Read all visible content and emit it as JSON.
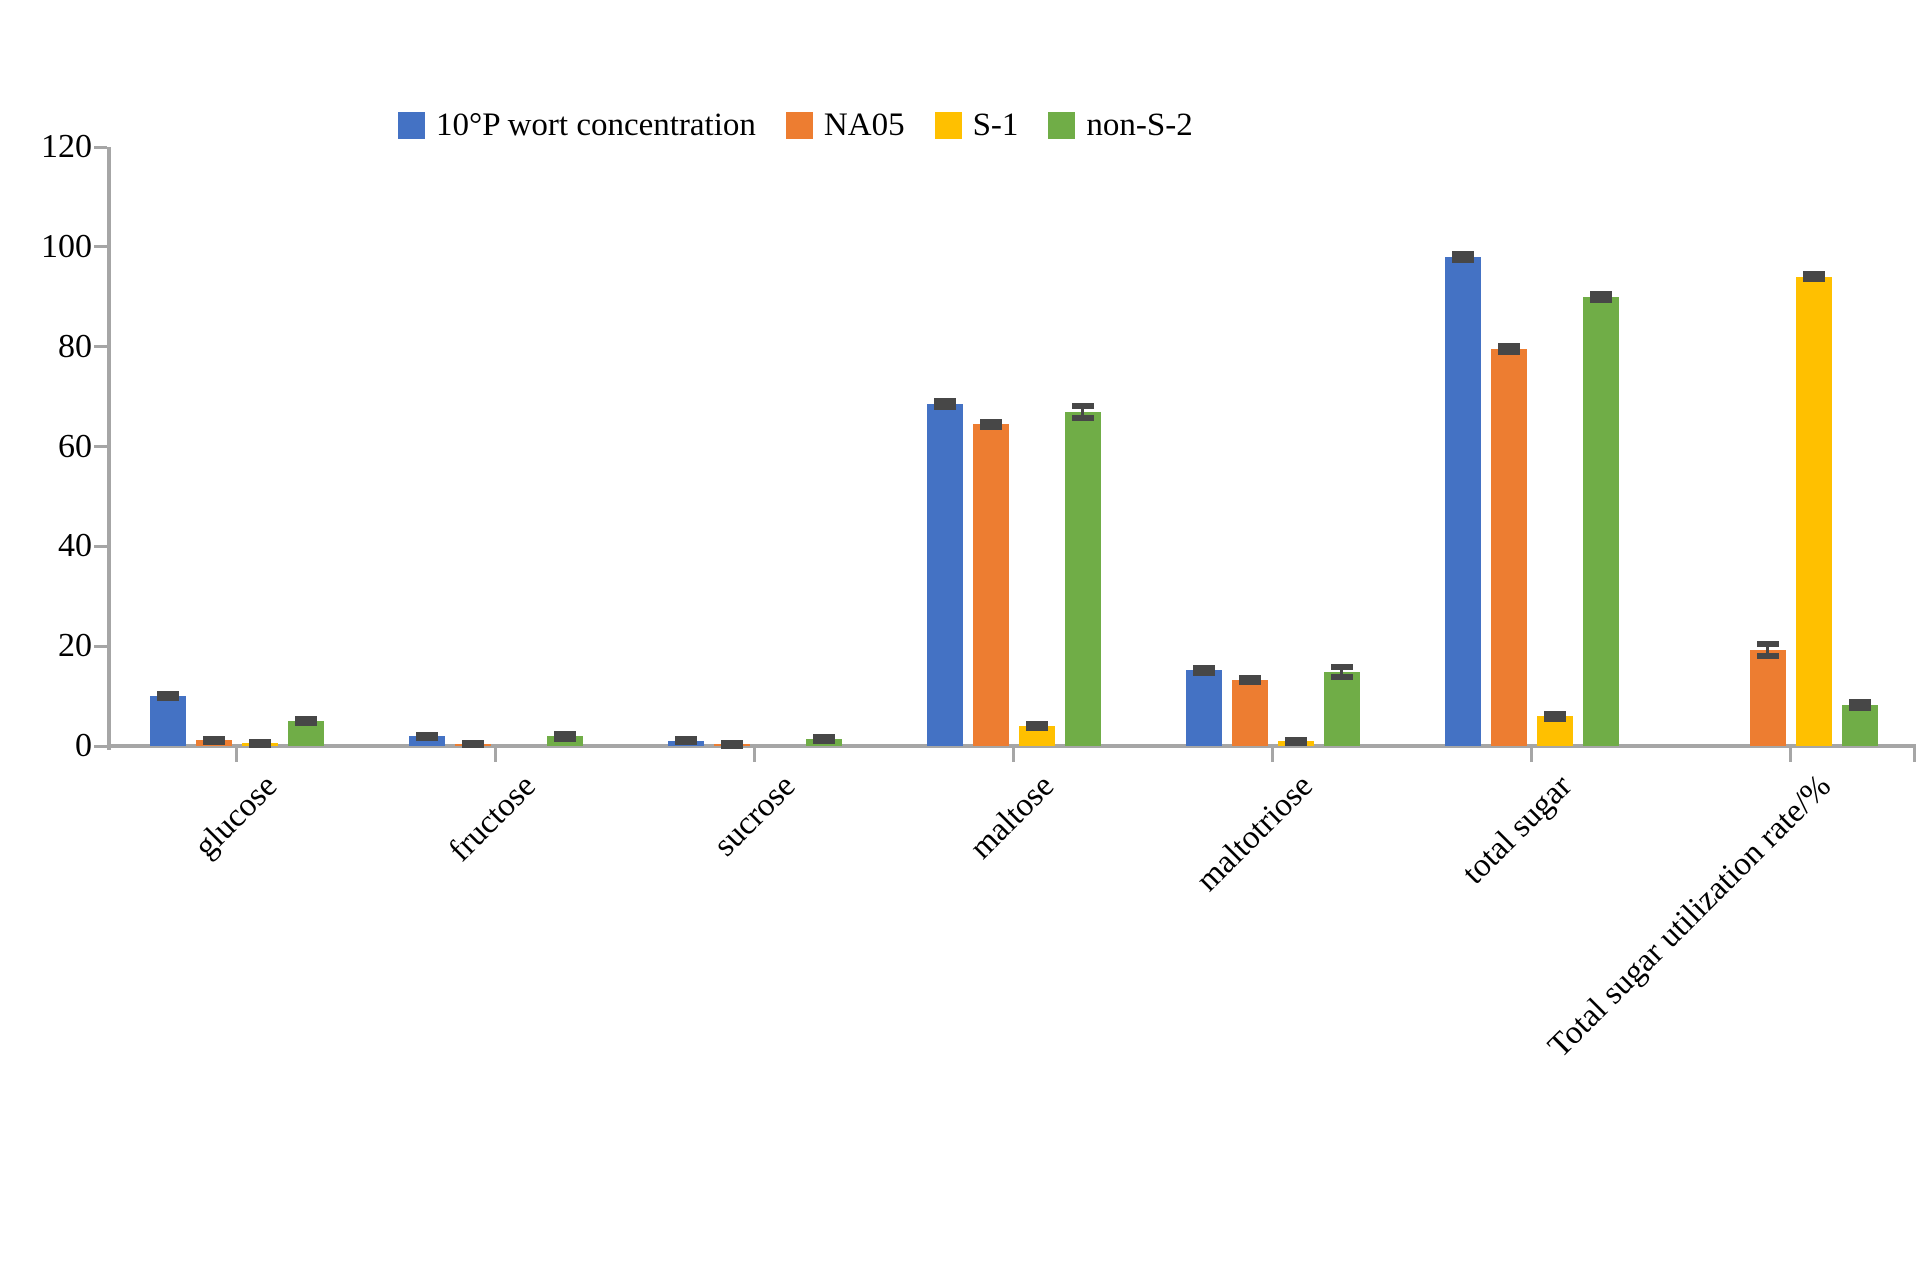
{
  "chart_data": {
    "type": "bar",
    "title": "",
    "xlabel": "",
    "ylabel": "",
    "ylim": [
      0,
      120
    ],
    "yticks": [
      0,
      20,
      40,
      60,
      80,
      100,
      120
    ],
    "grid": false,
    "legend_position": "top",
    "axis_color": "#A6A6A6",
    "error_bar_color": "#474747",
    "background": "#FFFFFF",
    "categories": [
      "glucose",
      "fructose",
      "sucrose",
      "maltose",
      "maltotriose",
      "total sugar",
      "Total sugar utilization rate/%"
    ],
    "series": [
      {
        "name": "10°P wort concentration",
        "color": "#4472C4",
        "values": [
          10,
          2,
          1.1,
          68.5,
          15.2,
          98,
          0
        ],
        "errors": [
          0.4,
          0.3,
          0.3,
          0.6,
          0.5,
          0.6,
          0
        ]
      },
      {
        "name": "NA05",
        "color": "#ED7D31",
        "values": [
          1.2,
          0.4,
          0.4,
          64.5,
          13.2,
          79.5,
          19.3
        ],
        "errors": [
          0.3,
          0.2,
          0.3,
          0.5,
          0.4,
          0.6,
          1.2
        ]
      },
      {
        "name": "S-1",
        "color": "#FFC000",
        "values": [
          0.6,
          0,
          0,
          4,
          1,
          6,
          94
        ],
        "errors": [
          0.3,
          0,
          0,
          0.4,
          0.3,
          0.5,
          0.5
        ]
      },
      {
        "name": "non-S-2",
        "color": "#70AD47",
        "values": [
          5,
          2,
          1.4,
          67,
          14.8,
          90,
          8.2
        ],
        "errors": [
          0.4,
          0.5,
          0.4,
          1.2,
          1.0,
          0.6,
          0.6
        ]
      }
    ]
  }
}
